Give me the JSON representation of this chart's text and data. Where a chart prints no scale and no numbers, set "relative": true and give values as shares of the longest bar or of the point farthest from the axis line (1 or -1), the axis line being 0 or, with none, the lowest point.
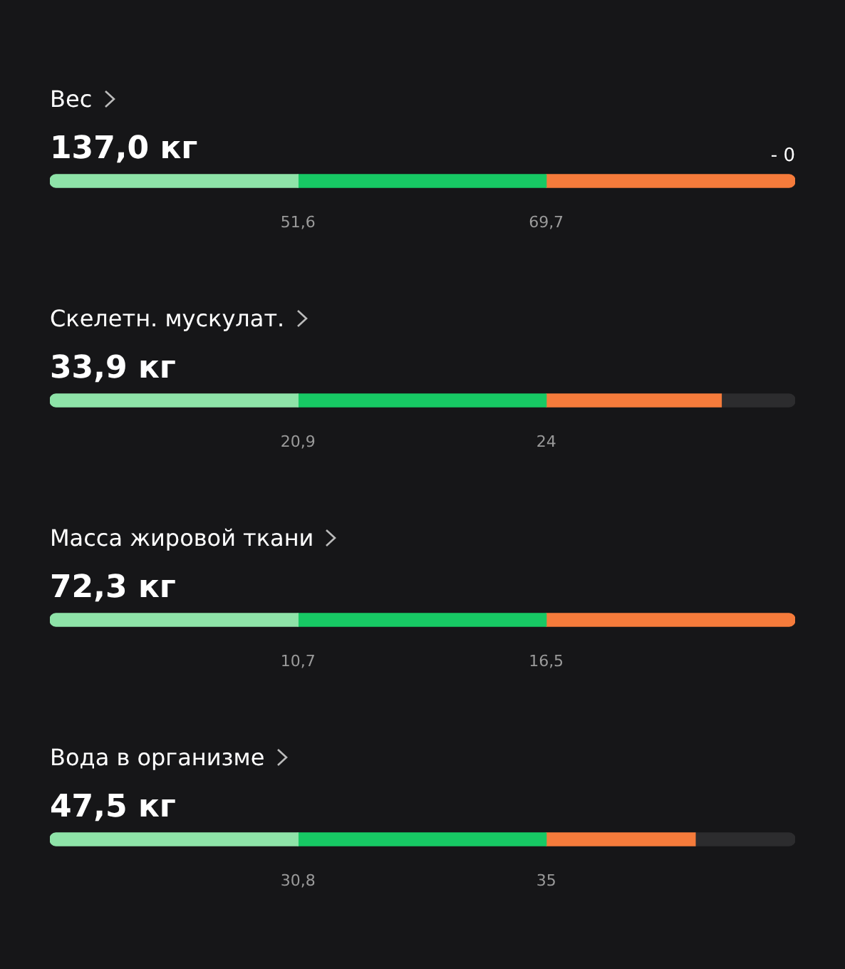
{
  "chart_data": [
    {
      "type": "bar",
      "orientation": "horizontal",
      "stacked": true,
      "relative": true,
      "title": "Вес",
      "subtitle": "137,0 кг",
      "categories": [
        null
      ],
      "series": [
        {
          "color": "#8ee3a8",
          "values": [
            0.333
          ]
        },
        {
          "color": "#17c964",
          "values": [
            0.333
          ]
        },
        {
          "color": "#f57b3b",
          "values": [
            0.334
          ]
        }
      ],
      "annotations": [
        "- 0",
        "51,6",
        "69,7"
      ]
    },
    {
      "type": "bar",
      "orientation": "horizontal",
      "stacked": true,
      "relative": true,
      "title": "Скелетн. мускулат.",
      "subtitle": "33,9 кг",
      "categories": [
        null
      ],
      "series": [
        {
          "color": "#8ee3a8",
          "values": [
            0.333
          ]
        },
        {
          "color": "#17c964",
          "values": [
            0.333
          ]
        },
        {
          "color": "#f57b3b",
          "values": [
            0.235
          ]
        },
        {
          "color": "#2c2c2e",
          "values": [
            0.099
          ]
        }
      ],
      "annotations": [
        "20,9",
        "24"
      ]
    },
    {
      "type": "bar",
      "orientation": "horizontal",
      "stacked": true,
      "relative": true,
      "title": "Масса жировой ткани",
      "subtitle": "72,3 кг",
      "categories": [
        null
      ],
      "series": [
        {
          "color": "#8ee3a8",
          "values": [
            0.333
          ]
        },
        {
          "color": "#17c964",
          "values": [
            0.333
          ]
        },
        {
          "color": "#f57b3b",
          "values": [
            0.334
          ]
        }
      ],
      "annotations": [
        "10,7",
        "16,5"
      ]
    },
    {
      "type": "bar",
      "orientation": "horizontal",
      "stacked": true,
      "relative": true,
      "title": "Вода в организме",
      "subtitle": "47,5 кг",
      "categories": [
        null
      ],
      "series": [
        {
          "color": "#8ee3a8",
          "values": [
            0.333
          ]
        },
        {
          "color": "#17c964",
          "values": [
            0.333
          ]
        },
        {
          "color": "#f57b3b",
          "values": [
            0.2
          ]
        },
        {
          "color": "#2c2c2e",
          "values": [
            0.134
          ]
        }
      ],
      "annotations": [
        "30,8",
        "35"
      ]
    }
  ]
}
